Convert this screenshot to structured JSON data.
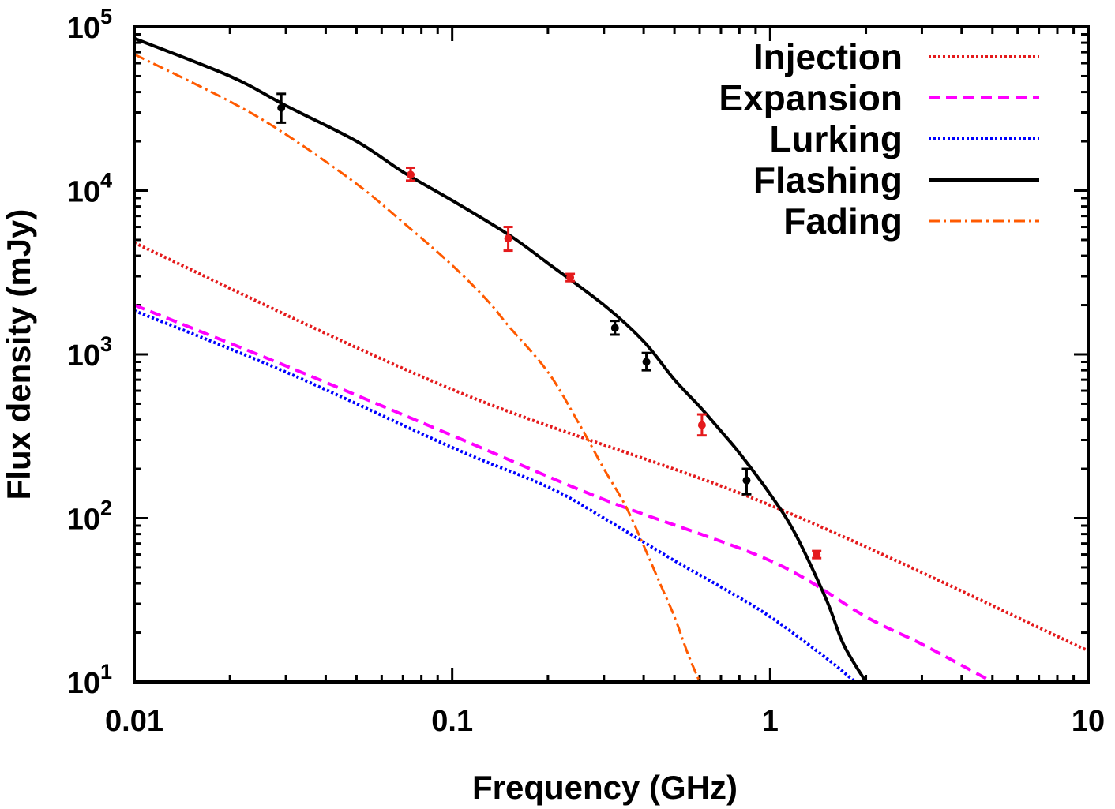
{
  "chart_data": {
    "type": "line",
    "xlabel": "Frequency (GHz)",
    "ylabel": "Flux density (mJy)",
    "xscale": "log",
    "yscale": "log",
    "xlim": [
      0.01,
      10
    ],
    "ylim": [
      10,
      100000
    ],
    "x_ticks": [
      {
        "value": 0.01,
        "label": "0.01"
      },
      {
        "value": 0.1,
        "label": "0.1"
      },
      {
        "value": 1,
        "label": "1"
      },
      {
        "value": 10,
        "label": "10"
      }
    ],
    "y_ticks": [
      {
        "value": 10,
        "base": "10",
        "exp": "1"
      },
      {
        "value": 100,
        "base": "10",
        "exp": "2"
      },
      {
        "value": 1000,
        "base": "10",
        "exp": "3"
      },
      {
        "value": 10000,
        "base": "10",
        "exp": "4"
      },
      {
        "value": 100000,
        "base": "10",
        "exp": "5"
      }
    ],
    "grid": false,
    "legend_position": "top-right",
    "series": [
      {
        "name": "Injection",
        "color": "#e41a1c",
        "style": "dotted",
        "points": [
          [
            0.01,
            4800
          ],
          [
            0.1,
            610
          ],
          [
            1,
            120
          ],
          [
            10,
            15.5
          ]
        ]
      },
      {
        "name": "Expansion",
        "color": "#ff00ff",
        "style": "dashed",
        "points": [
          [
            0.01,
            2000
          ],
          [
            0.03,
            850
          ],
          [
            0.1,
            320
          ],
          [
            0.3,
            130
          ],
          [
            1,
            55
          ],
          [
            2,
            25
          ],
          [
            3,
            17
          ],
          [
            5,
            10
          ]
        ]
      },
      {
        "name": "Lurking",
        "color": "#0000ff",
        "style": "dotted",
        "points": [
          [
            0.01,
            1850
          ],
          [
            0.03,
            780
          ],
          [
            0.1,
            270
          ],
          [
            0.2,
            155
          ],
          [
            0.3,
            100
          ],
          [
            0.5,
            55
          ],
          [
            0.7,
            38
          ],
          [
            1,
            25
          ],
          [
            1.5,
            14
          ],
          [
            1.85,
            10
          ]
        ]
      },
      {
        "name": "Flashing",
        "color": "#000000",
        "style": "solid",
        "points": [
          [
            0.01,
            85000
          ],
          [
            0.02,
            50000
          ],
          [
            0.03,
            33000
          ],
          [
            0.05,
            20000
          ],
          [
            0.07,
            13000
          ],
          [
            0.1,
            8700
          ],
          [
            0.15,
            5400
          ],
          [
            0.2,
            3600
          ],
          [
            0.3,
            2000
          ],
          [
            0.4,
            1200
          ],
          [
            0.5,
            700
          ],
          [
            0.6,
            480
          ],
          [
            0.7,
            340
          ],
          [
            0.8,
            250
          ],
          [
            1,
            140
          ],
          [
            1.2,
            80
          ],
          [
            1.5,
            32
          ],
          [
            1.7,
            17
          ],
          [
            2,
            10
          ]
        ]
      },
      {
        "name": "Fading",
        "color": "#ff5a00",
        "style": "dashdot",
        "points": [
          [
            0.01,
            68000
          ],
          [
            0.02,
            35000
          ],
          [
            0.03,
            22000
          ],
          [
            0.05,
            11000
          ],
          [
            0.07,
            6400
          ],
          [
            0.1,
            3500
          ],
          [
            0.13,
            2100
          ],
          [
            0.15,
            1500
          ],
          [
            0.2,
            780
          ],
          [
            0.25,
            380
          ],
          [
            0.3,
            200
          ],
          [
            0.35,
            120
          ],
          [
            0.4,
            68
          ],
          [
            0.45,
            40
          ],
          [
            0.5,
            25
          ],
          [
            0.55,
            15
          ],
          [
            0.6,
            10
          ]
        ]
      }
    ],
    "observations": [
      {
        "x": 0.029,
        "y": 32000,
        "ylow": 26000,
        "yhigh": 39000,
        "color": "#000000"
      },
      {
        "x": 0.074,
        "y": 12500,
        "ylow": 11500,
        "yhigh": 13800,
        "color": "#e41a1c"
      },
      {
        "x": 0.15,
        "y": 5100,
        "ylow": 4300,
        "yhigh": 6000,
        "color": "#e41a1c"
      },
      {
        "x": 0.235,
        "y": 2950,
        "ylow": 2800,
        "yhigh": 3100,
        "color": "#e41a1c"
      },
      {
        "x": 0.325,
        "y": 1450,
        "ylow": 1320,
        "yhigh": 1600,
        "color": "#000000"
      },
      {
        "x": 0.408,
        "y": 900,
        "ylow": 800,
        "yhigh": 1020,
        "color": "#000000"
      },
      {
        "x": 0.61,
        "y": 370,
        "ylow": 320,
        "yhigh": 430,
        "color": "#e41a1c"
      },
      {
        "x": 0.843,
        "y": 170,
        "ylow": 140,
        "yhigh": 200,
        "color": "#000000"
      },
      {
        "x": 1.4,
        "y": 60,
        "ylow": 57,
        "yhigh": 63,
        "color": "#e41a1c"
      }
    ]
  }
}
